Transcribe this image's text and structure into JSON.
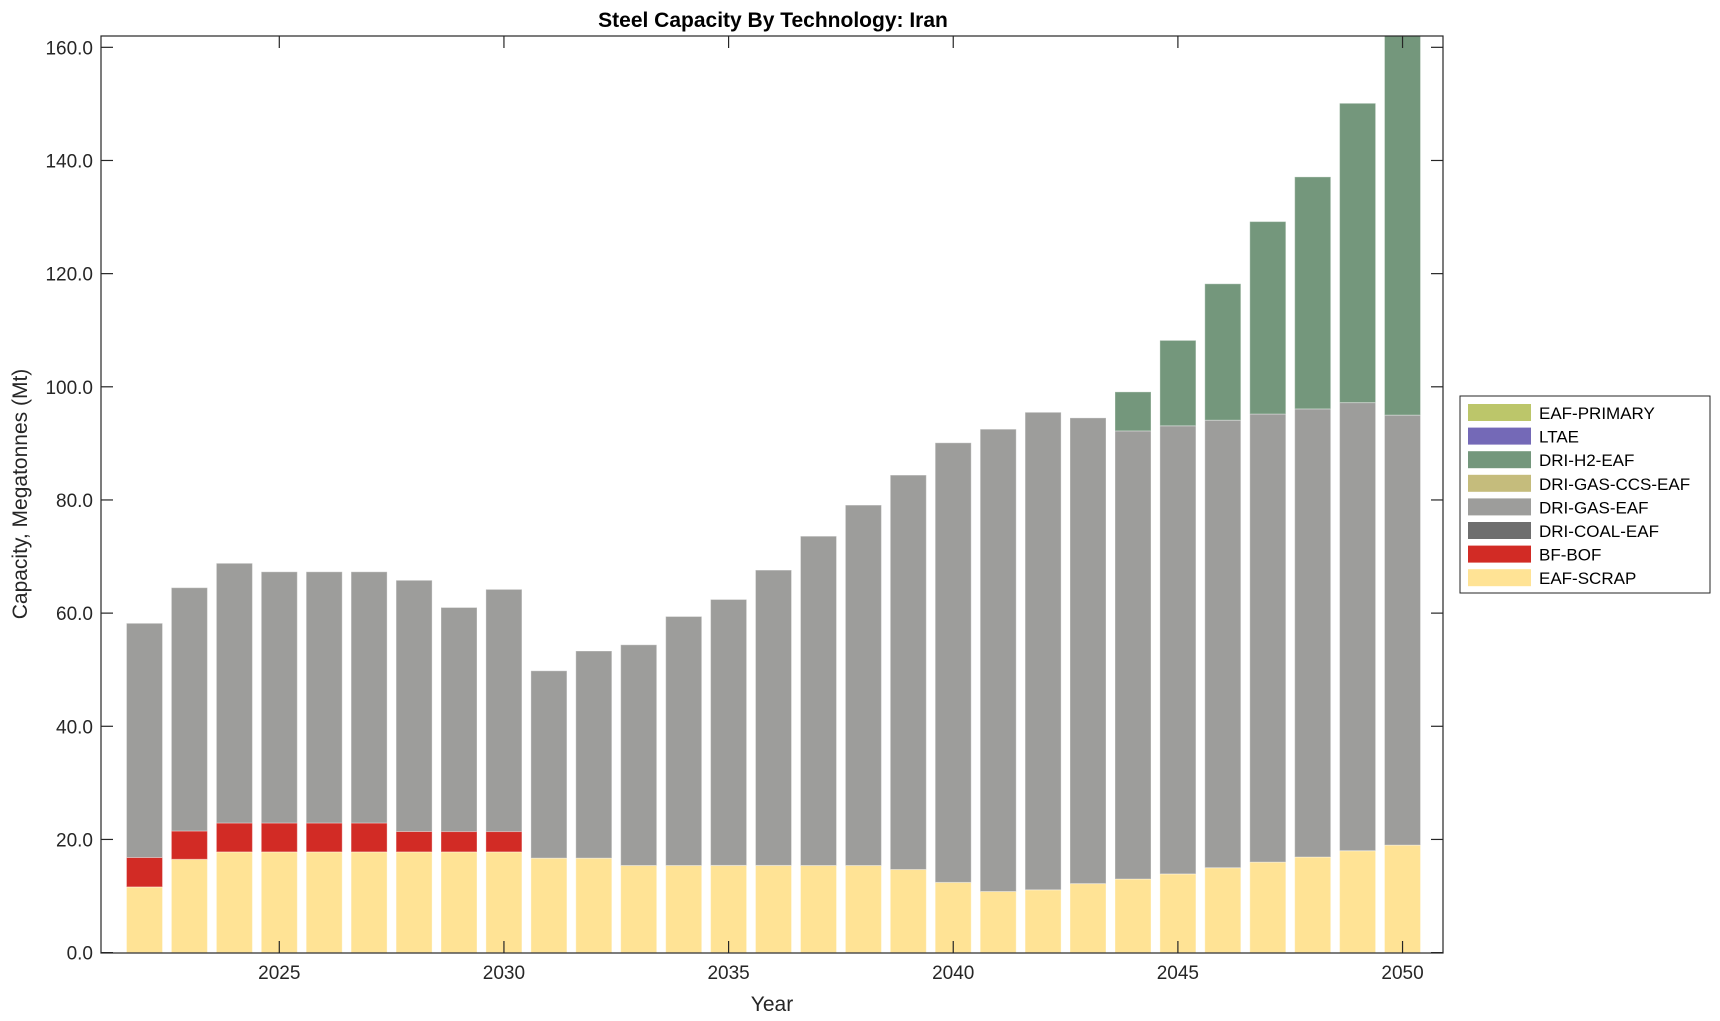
{
  "chart_data": {
    "type": "bar",
    "stacked": true,
    "title": "Steel Capacity By Technology: Iran",
    "xlabel": "Year",
    "ylabel": "Capacity, Megatonnes (Mt)",
    "ylim": [
      0,
      162
    ],
    "yticks": [
      "0.0",
      "20.0",
      "40.0",
      "60.0",
      "80.0",
      "100.0",
      "120.0",
      "140.0",
      "160.0"
    ],
    "ytick_values": [
      0,
      20,
      40,
      60,
      80,
      100,
      120,
      140,
      160
    ],
    "xticks": [
      "2025",
      "2030",
      "2035",
      "2040",
      "2045",
      "2050"
    ],
    "xtick_values": [
      2025,
      2030,
      2035,
      2040,
      2045,
      2050
    ],
    "grid": false,
    "legend_position": "right",
    "categories": [
      2022,
      2023,
      2024,
      2025,
      2026,
      2027,
      2028,
      2029,
      2030,
      2031,
      2032,
      2033,
      2034,
      2035,
      2036,
      2037,
      2038,
      2039,
      2040,
      2041,
      2042,
      2043,
      2044,
      2045,
      2046,
      2047,
      2048,
      2049,
      2050
    ],
    "series": [
      {
        "name": "EAF-SCRAP",
        "color": "#FFE395",
        "values": [
          11.6,
          16.5,
          17.8,
          17.8,
          17.8,
          17.8,
          17.8,
          17.8,
          17.8,
          16.7,
          16.7,
          15.4,
          15.4,
          15.4,
          15.4,
          15.4,
          15.4,
          14.7,
          12.4,
          10.8,
          11.1,
          12.2,
          13.0,
          13.9,
          15.0,
          16.0,
          16.9,
          18.0,
          19.0
        ]
      },
      {
        "name": "BF-BOF",
        "color": "#D22B25",
        "values": [
          5.2,
          5.0,
          5.1,
          5.1,
          5.1,
          5.1,
          3.6,
          3.6,
          3.6,
          0,
          0,
          0,
          0,
          0,
          0,
          0,
          0,
          0,
          0,
          0,
          0,
          0,
          0,
          0,
          0,
          0,
          0,
          0,
          0
        ]
      },
      {
        "name": "DRI-COAL-EAF",
        "color": "#6E6E6E",
        "values": [
          0,
          0,
          0,
          0,
          0,
          0,
          0,
          0,
          0,
          0,
          0,
          0,
          0,
          0,
          0,
          0,
          0,
          0,
          0,
          0,
          0,
          0,
          0,
          0,
          0,
          0,
          0,
          0,
          0
        ]
      },
      {
        "name": "DRI-GAS-EAF",
        "color": "#9D9D9B",
        "values": [
          41.4,
          43.0,
          45.9,
          44.4,
          44.4,
          44.4,
          44.4,
          39.6,
          42.8,
          33.1,
          36.6,
          39.0,
          44.0,
          47.0,
          52.2,
          58.2,
          63.7,
          69.7,
          77.7,
          81.7,
          84.4,
          82.3,
          79.2,
          79.2,
          79.1,
          79.2,
          79.2,
          79.2,
          76.0
        ]
      },
      {
        "name": "DRI-GAS-CCS-EAF",
        "color": "#C5BC7C",
        "values": [
          0,
          0,
          0,
          0,
          0,
          0,
          0,
          0,
          0,
          0,
          0,
          0,
          0,
          0,
          0,
          0,
          0,
          0,
          0,
          0,
          0,
          0,
          0,
          0,
          0,
          0,
          0,
          0,
          0
        ]
      },
      {
        "name": "DRI-H2-EAF",
        "color": "#74977C",
        "values": [
          0,
          0,
          0,
          0,
          0,
          0,
          0,
          0,
          0,
          0,
          0,
          0,
          0,
          0,
          0,
          0,
          0,
          0,
          0,
          0,
          0,
          0,
          6.9,
          15.1,
          24.1,
          34.0,
          41.0,
          52.9,
          67.0
        ]
      },
      {
        "name": "LTAE",
        "color": "#7469B7",
        "values": [
          0,
          0,
          0,
          0,
          0,
          0,
          0,
          0,
          0,
          0,
          0,
          0,
          0,
          0,
          0,
          0,
          0,
          0,
          0,
          0,
          0,
          0,
          0,
          0,
          0,
          0,
          0,
          0,
          0
        ]
      },
      {
        "name": "EAF-PRIMARY",
        "color": "#BCC66A",
        "values": [
          0,
          0,
          0,
          0,
          0,
          0,
          0,
          0,
          0,
          0,
          0,
          0,
          0,
          0,
          0,
          0,
          0,
          0,
          0,
          0,
          0,
          0,
          0,
          0,
          0,
          0,
          0,
          0,
          0
        ]
      }
    ],
    "legend_order": [
      "EAF-PRIMARY",
      "LTAE",
      "DRI-H2-EAF",
      "DRI-GAS-CCS-EAF",
      "DRI-GAS-EAF",
      "DRI-COAL-EAF",
      "BF-BOF",
      "EAF-SCRAP"
    ]
  }
}
